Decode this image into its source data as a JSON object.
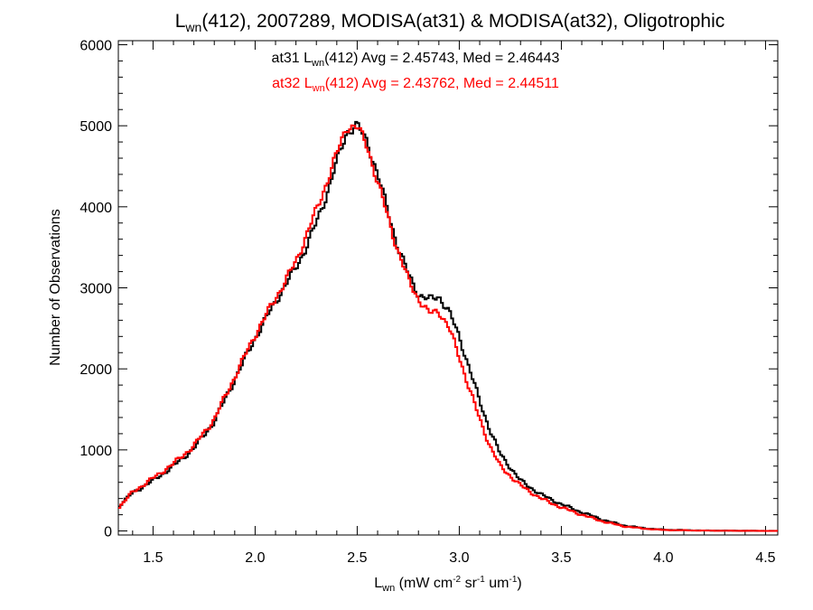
{
  "chart_data": {
    "type": "line",
    "title": {
      "prefix": "L",
      "sub": "wn",
      "rest": "(412), 2007289, MODISA(at31) & MODISA(at32), Oligotrophic"
    },
    "xlabel": {
      "main": "L",
      "sub": "wn",
      "rest": " (mW cm",
      "sup1": "-2",
      "mid": " sr",
      "sup2": "-1",
      "end": " um",
      "sup3": "-1",
      "close": ")"
    },
    "ylabel": "Number of Observations",
    "xlim": [
      1.33,
      4.56
    ],
    "ylim": [
      -50,
      6050
    ],
    "x_ticks": [
      1.5,
      2.0,
      2.5,
      3.0,
      3.5,
      4.0,
      4.5
    ],
    "x_tick_labels": [
      "1.5",
      "2.0",
      "2.5",
      "3.0",
      "3.5",
      "4.0",
      "4.5"
    ],
    "y_ticks": [
      0,
      1000,
      2000,
      3000,
      4000,
      5000,
      6000
    ],
    "y_tick_labels": [
      "0",
      "1000",
      "2000",
      "3000",
      "4000",
      "5000",
      "6000"
    ],
    "annotations": [
      {
        "series": "at31",
        "prefix": "at31 L",
        "sub": "wn",
        "rest": "(412) Avg = 2.45743, Med = 2.46443",
        "color": "#000000"
      },
      {
        "series": "at32",
        "prefix": "at32 L",
        "sub": "wn",
        "rest": "(412) Avg = 2.43762, Med = 2.44511",
        "color": "#ff0000"
      }
    ],
    "series": [
      {
        "name": "at31",
        "color": "#000000",
        "step": true,
        "points": [
          [
            1.33,
            300
          ],
          [
            1.4,
            470
          ],
          [
            1.5,
            620
          ],
          [
            1.6,
            800
          ],
          [
            1.7,
            1020
          ],
          [
            1.8,
            1350
          ],
          [
            1.9,
            1870
          ],
          [
            2.0,
            2380
          ],
          [
            2.1,
            2830
          ],
          [
            2.2,
            3250
          ],
          [
            2.25,
            3500
          ],
          [
            2.3,
            3800
          ],
          [
            2.35,
            4150
          ],
          [
            2.4,
            4550
          ],
          [
            2.45,
            4930
          ],
          [
            2.5,
            5000
          ],
          [
            2.55,
            4800
          ],
          [
            2.6,
            4400
          ],
          [
            2.65,
            3950
          ],
          [
            2.7,
            3500
          ],
          [
            2.75,
            3170
          ],
          [
            2.8,
            2920
          ],
          [
            2.85,
            2850
          ],
          [
            2.9,
            2900
          ],
          [
            2.95,
            2700
          ],
          [
            3.0,
            2400
          ],
          [
            3.05,
            2000
          ],
          [
            3.1,
            1600
          ],
          [
            3.15,
            1250
          ],
          [
            3.2,
            950
          ],
          [
            3.3,
            620
          ],
          [
            3.4,
            450
          ],
          [
            3.5,
            330
          ],
          [
            3.6,
            230
          ],
          [
            3.7,
            140
          ],
          [
            3.8,
            70
          ],
          [
            3.9,
            35
          ],
          [
            4.0,
            15
          ],
          [
            4.2,
            5
          ],
          [
            4.56,
            0
          ]
        ]
      },
      {
        "name": "at32",
        "color": "#ff0000",
        "step": true,
        "points": [
          [
            1.33,
            280
          ],
          [
            1.4,
            480
          ],
          [
            1.5,
            650
          ],
          [
            1.6,
            830
          ],
          [
            1.7,
            1050
          ],
          [
            1.8,
            1380
          ],
          [
            1.9,
            1900
          ],
          [
            2.0,
            2420
          ],
          [
            2.1,
            2870
          ],
          [
            2.2,
            3320
          ],
          [
            2.25,
            3650
          ],
          [
            2.3,
            3950
          ],
          [
            2.35,
            4300
          ],
          [
            2.4,
            4650
          ],
          [
            2.45,
            5000
          ],
          [
            2.5,
            4980
          ],
          [
            2.55,
            4750
          ],
          [
            2.6,
            4300
          ],
          [
            2.65,
            3880
          ],
          [
            2.7,
            3450
          ],
          [
            2.75,
            3100
          ],
          [
            2.8,
            2870
          ],
          [
            2.85,
            2680
          ],
          [
            2.9,
            2720
          ],
          [
            2.95,
            2500
          ],
          [
            3.0,
            2150
          ],
          [
            3.05,
            1750
          ],
          [
            3.1,
            1380
          ],
          [
            3.15,
            1050
          ],
          [
            3.2,
            800
          ],
          [
            3.3,
            560
          ],
          [
            3.4,
            400
          ],
          [
            3.5,
            290
          ],
          [
            3.6,
            200
          ],
          [
            3.7,
            120
          ],
          [
            3.8,
            60
          ],
          [
            3.9,
            30
          ],
          [
            4.0,
            12
          ],
          [
            4.2,
            4
          ],
          [
            4.56,
            0
          ]
        ]
      }
    ],
    "grid": false,
    "legend": "none"
  }
}
